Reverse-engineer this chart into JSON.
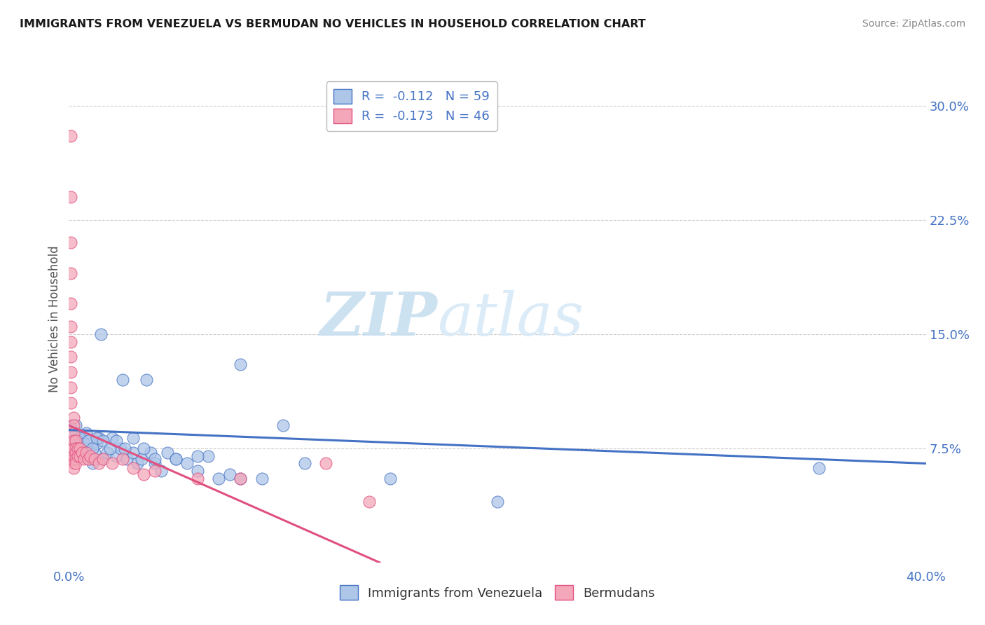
{
  "title": "IMMIGRANTS FROM VENEZUELA VS BERMUDAN NO VEHICLES IN HOUSEHOLD CORRELATION CHART",
  "source_text": "Source: ZipAtlas.com",
  "ylabel": "No Vehicles in Household",
  "xlim": [
    0.0,
    0.4
  ],
  "ylim": [
    0.0,
    0.32
  ],
  "yticks_right": [
    0.075,
    0.15,
    0.225,
    0.3
  ],
  "ytick_right_labels": [
    "7.5%",
    "15.0%",
    "22.5%",
    "30.0%"
  ],
  "legend_entries": [
    {
      "label": "R =  -0.112   N = 59",
      "color": "#aec6e8"
    },
    {
      "label": "R =  -0.173   N = 46",
      "color": "#f4a7b9"
    }
  ],
  "legend_labels_bottom": [
    "Immigrants from Venezuela",
    "Bermudans"
  ],
  "series1_color": "#aec6e8",
  "series2_color": "#f4a7b9",
  "line1_color": "#4472c4",
  "line2_color": "#e05080",
  "watermark_zip": "ZIP",
  "watermark_atlas": "atlas",
  "background_color": "#ffffff",
  "blue_scatter_x": [
    0.001,
    0.002,
    0.003,
    0.004,
    0.005,
    0.006,
    0.007,
    0.008,
    0.009,
    0.01,
    0.011,
    0.012,
    0.013,
    0.014,
    0.015,
    0.016,
    0.018,
    0.02,
    0.022,
    0.024,
    0.025,
    0.027,
    0.03,
    0.032,
    0.034,
    0.036,
    0.038,
    0.04,
    0.043,
    0.046,
    0.05,
    0.055,
    0.06,
    0.065,
    0.07,
    0.075,
    0.08,
    0.09,
    0.1,
    0.11,
    0.003,
    0.005,
    0.007,
    0.009,
    0.011,
    0.013,
    0.016,
    0.019,
    0.022,
    0.026,
    0.03,
    0.035,
    0.04,
    0.05,
    0.06,
    0.08,
    0.15,
    0.2,
    0.35
  ],
  "blue_scatter_y": [
    0.09,
    0.08,
    0.085,
    0.075,
    0.07,
    0.08,
    0.075,
    0.085,
    0.075,
    0.068,
    0.065,
    0.072,
    0.078,
    0.082,
    0.15,
    0.068,
    0.072,
    0.082,
    0.07,
    0.075,
    0.12,
    0.068,
    0.072,
    0.065,
    0.068,
    0.12,
    0.072,
    0.065,
    0.06,
    0.072,
    0.068,
    0.065,
    0.06,
    0.07,
    0.055,
    0.058,
    0.055,
    0.055,
    0.09,
    0.065,
    0.09,
    0.082,
    0.078,
    0.08,
    0.075,
    0.082,
    0.08,
    0.075,
    0.08,
    0.075,
    0.082,
    0.075,
    0.068,
    0.068,
    0.07,
    0.13,
    0.055,
    0.04,
    0.062
  ],
  "pink_scatter_x": [
    0.001,
    0.001,
    0.001,
    0.001,
    0.001,
    0.001,
    0.001,
    0.001,
    0.001,
    0.001,
    0.001,
    0.002,
    0.002,
    0.002,
    0.002,
    0.002,
    0.002,
    0.002,
    0.002,
    0.002,
    0.003,
    0.003,
    0.003,
    0.003,
    0.003,
    0.004,
    0.004,
    0.005,
    0.005,
    0.006,
    0.007,
    0.008,
    0.009,
    0.01,
    0.012,
    0.014,
    0.016,
    0.02,
    0.025,
    0.03,
    0.035,
    0.04,
    0.06,
    0.08,
    0.12,
    0.14
  ],
  "pink_scatter_y": [
    0.28,
    0.24,
    0.21,
    0.19,
    0.17,
    0.155,
    0.145,
    0.135,
    0.125,
    0.115,
    0.105,
    0.095,
    0.09,
    0.085,
    0.08,
    0.075,
    0.07,
    0.068,
    0.065,
    0.062,
    0.08,
    0.075,
    0.072,
    0.068,
    0.065,
    0.075,
    0.07,
    0.075,
    0.07,
    0.072,
    0.068,
    0.072,
    0.068,
    0.07,
    0.068,
    0.065,
    0.068,
    0.065,
    0.068,
    0.062,
    0.058,
    0.06,
    0.055,
    0.055,
    0.065,
    0.04
  ],
  "blue_line_x": [
    0.0,
    0.4
  ],
  "blue_line_y": [
    0.087,
    0.065
  ],
  "pink_line_x": [
    0.0,
    0.145
  ],
  "pink_line_y": [
    0.09,
    0.0
  ]
}
